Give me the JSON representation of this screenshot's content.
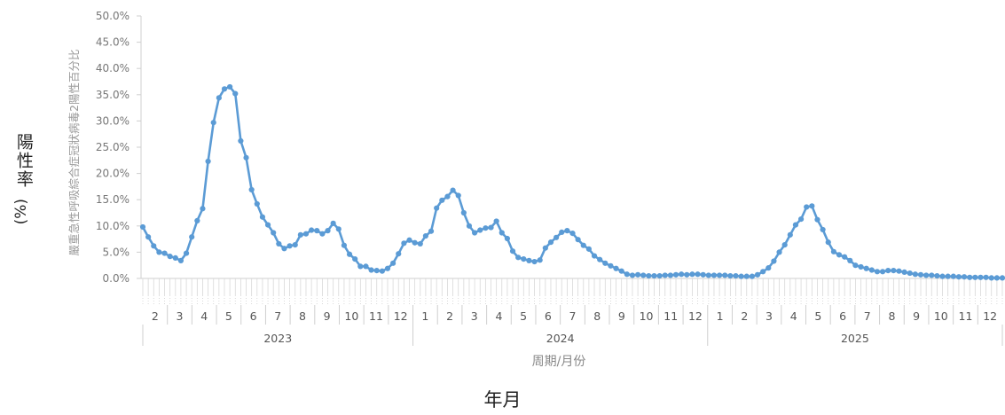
{
  "outer_labels": {
    "ylabel_text": "陽性率",
    "ylabel_unit": "(%)",
    "xlabel": "年月"
  },
  "chart_data": {
    "type": "line",
    "title": "",
    "ylabel": "嚴重急性呼吸綜合症冠狀病毒2陽性百分比",
    "xlabel": "周期/月份",
    "ylim": [
      0,
      50
    ],
    "y_ticks": [
      "0.0%",
      "5.0%",
      "10.0%",
      "15.0%",
      "20.0%",
      "25.0%",
      "30.0%",
      "35.0%",
      "40.0%",
      "45.0%",
      "50.0%"
    ],
    "grid": false,
    "legend": "none",
    "line_color": "#5b9bd5",
    "months": [
      {
        "year": "2023",
        "month": "2"
      },
      {
        "year": "2023",
        "month": "3"
      },
      {
        "year": "2023",
        "month": "4"
      },
      {
        "year": "2023",
        "month": "5"
      },
      {
        "year": "2023",
        "month": "6"
      },
      {
        "year": "2023",
        "month": "7"
      },
      {
        "year": "2023",
        "month": "8"
      },
      {
        "year": "2023",
        "month": "9"
      },
      {
        "year": "2023",
        "month": "10"
      },
      {
        "year": "2023",
        "month": "11"
      },
      {
        "year": "2023",
        "month": "12"
      },
      {
        "year": "2024",
        "month": "1"
      },
      {
        "year": "2024",
        "month": "2"
      },
      {
        "year": "2024",
        "month": "3"
      },
      {
        "year": "2024",
        "month": "4"
      },
      {
        "year": "2024",
        "month": "5"
      },
      {
        "year": "2024",
        "month": "6"
      },
      {
        "year": "2024",
        "month": "7"
      },
      {
        "year": "2024",
        "month": "8"
      },
      {
        "year": "2024",
        "month": "9"
      },
      {
        "year": "2024",
        "month": "10"
      },
      {
        "year": "2024",
        "month": "11"
      },
      {
        "year": "2024",
        "month": "12"
      },
      {
        "year": "2025",
        "month": "1"
      },
      {
        "year": "2025",
        "month": "2"
      },
      {
        "year": "2025",
        "month": "3"
      },
      {
        "year": "2025",
        "month": "4"
      },
      {
        "year": "2025",
        "month": "5"
      },
      {
        "year": "2025",
        "month": "6"
      },
      {
        "year": "2025",
        "month": "7"
      },
      {
        "year": "2025",
        "month": "8"
      },
      {
        "year": "2025",
        "month": "9"
      },
      {
        "year": "2025",
        "month": "10"
      },
      {
        "year": "2025",
        "month": "11"
      },
      {
        "year": "2025",
        "month": "12"
      }
    ],
    "series": [
      {
        "values": [
          9.8,
          7.9,
          6.2,
          5.0,
          4.8,
          4.2,
          3.9,
          3.4,
          4.8,
          7.9,
          11.0,
          13.3,
          22.3,
          29.7,
          34.4,
          36.1,
          36.5,
          35.2,
          26.2,
          23.0,
          16.9,
          14.2,
          11.7,
          10.2,
          8.7,
          6.6,
          5.7,
          6.2,
          6.4,
          8.3,
          8.5,
          9.2,
          9.1,
          8.5,
          9.1,
          10.5,
          9.4,
          6.3,
          4.6,
          3.7,
          2.3,
          2.3,
          1.6,
          1.5,
          1.4,
          1.9,
          2.9,
          4.7,
          6.7,
          7.3,
          6.8,
          6.6,
          8.1,
          9.0,
          13.4,
          14.9,
          15.6,
          16.8,
          15.8,
          12.5,
          10.0,
          8.7,
          9.2,
          9.6,
          9.7,
          10.9,
          8.7,
          7.6,
          5.2,
          4.0,
          3.7,
          3.4,
          3.2,
          3.5,
          5.8,
          6.9,
          7.8,
          8.8,
          9.1,
          8.6,
          7.4,
          6.3,
          5.6,
          4.3,
          3.6,
          2.9,
          2.4,
          1.9,
          1.4,
          0.8,
          0.6,
          0.7,
          0.6,
          0.5,
          0.5,
          0.5,
          0.6,
          0.6,
          0.7,
          0.8,
          0.7,
          0.8,
          0.8,
          0.7,
          0.6,
          0.6,
          0.6,
          0.6,
          0.5,
          0.5,
          0.4,
          0.4,
          0.4,
          0.7,
          1.3,
          2.0,
          3.3,
          5.0,
          6.4,
          8.3,
          10.2,
          11.3,
          13.6,
          13.8,
          11.2,
          9.3,
          6.9,
          5.1,
          4.5,
          4.1,
          3.4,
          2.5,
          2.2,
          1.9,
          1.6,
          1.3,
          1.3,
          1.5,
          1.5,
          1.4,
          1.2,
          1.0,
          0.8,
          0.7,
          0.6,
          0.6,
          0.5,
          0.4,
          0.4,
          0.4,
          0.3,
          0.3,
          0.2,
          0.2,
          0.2,
          0.2,
          0.1,
          0.1,
          0.1
        ]
      }
    ]
  }
}
